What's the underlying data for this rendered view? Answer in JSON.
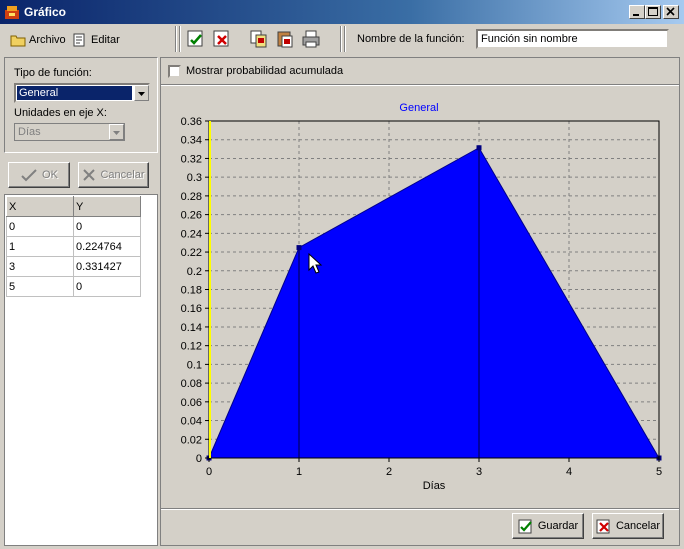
{
  "window": {
    "title": "Gráfico"
  },
  "menu": {
    "archivo": "Archivo",
    "editar": "Editar"
  },
  "toolbar": {
    "function_name_label": "Nombre de la función:",
    "function_name_value": "Función sin nombre"
  },
  "left_panel": {
    "function_type_label": "Tipo de función:",
    "function_type_value": "General",
    "x_units_label": "Unidades en eje X:",
    "x_units_value": "Días",
    "ok_label": "OK",
    "cancel_label": "Cancelar"
  },
  "table": {
    "headers": [
      "X",
      "Y"
    ],
    "rows": [
      [
        "0",
        "0"
      ],
      [
        "1",
        "0.224764"
      ],
      [
        "3",
        "0.331427"
      ],
      [
        "5",
        "0"
      ]
    ]
  },
  "checkbox": {
    "label": "Mostrar probabilidad acumulada",
    "checked": false
  },
  "chart_data": {
    "type": "area",
    "title": "General",
    "xlabel": "Días",
    "ylabel": "",
    "x": [
      0,
      1,
      3,
      5
    ],
    "values": [
      0,
      0.224764,
      0.331427,
      0
    ],
    "xlim": [
      0,
      5
    ],
    "ylim": [
      0,
      0.36
    ],
    "xticks": [
      "0",
      "1",
      "2",
      "3",
      "4",
      "5"
    ],
    "yticks": [
      "0",
      "0.02",
      "0.04",
      "0.06",
      "0.08",
      "0.1",
      "0.12",
      "0.14",
      "0.16",
      "0.18",
      "0.2",
      "0.22",
      "0.24",
      "0.26",
      "0.28",
      "0.3",
      "0.32",
      "0.34",
      "0.36"
    ],
    "grid": true,
    "fill_color": "#0000ff",
    "title_color": "#0000ff"
  },
  "footer": {
    "save_label": "Guardar",
    "cancel_label": "Cancelar"
  }
}
